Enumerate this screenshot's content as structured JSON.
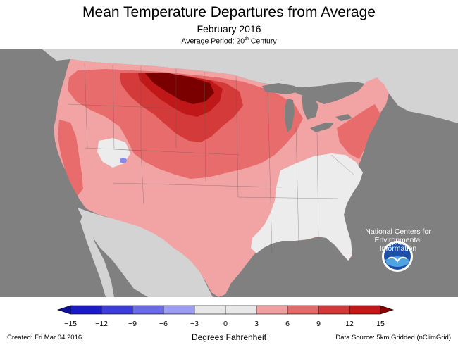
{
  "header": {
    "title": "Mean Temperature Departures from Average",
    "subtitle": "February 2016",
    "period_prefix": "Average Period: 20",
    "period_sup": "th",
    "period_suffix": " Century"
  },
  "branding": {
    "logo_text": "NOAA",
    "center_line1": "National Centers for",
    "center_line2": "Environmental",
    "center_line3": "Information"
  },
  "legend": {
    "ticks": [
      "−15",
      "−12",
      "−9",
      "−6",
      "−3",
      "0",
      "3",
      "6",
      "9",
      "12",
      "15"
    ],
    "units_label": "Degrees Fahrenheit",
    "bin_colors": [
      "#1a1ac8",
      "#3c3cdb",
      "#6a6ae8",
      "#9c9cf2",
      "#e8e8e8",
      "#e8e8e8",
      "#f0a0a0",
      "#e46a6a",
      "#d43838",
      "#c41616"
    ],
    "low_arrow_color": "#10109a",
    "high_arrow_color": "#8a0000"
  },
  "map": {
    "description_colors": {
      "ocean": "#808080",
      "canada": "#d3d3d3",
      "lakes": "#808080",
      "near_normal": "#ececec",
      "warm_3_6": "#f2a4a4",
      "warm_6_9": "#e86c6c",
      "warm_9_12": "#d43a3a",
      "warm_12_15": "#c01818",
      "warm_15plus": "#7a0000",
      "cool": "#8a8aee"
    }
  },
  "footer": {
    "created": "Created: Fri Mar 04 2016",
    "source": "Data Source: 5km Gridded (nClimGrid)"
  }
}
